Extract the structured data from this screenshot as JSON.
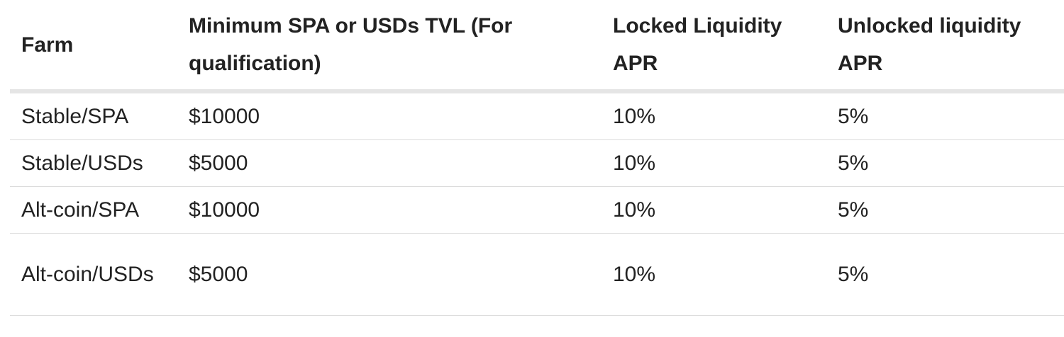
{
  "table": {
    "header": [
      "Farm",
      "Minimum SPA or USDs TVL (For qualification)",
      "Locked Liquidity APR",
      "Unlocked liquidity APR"
    ],
    "rows": [
      [
        "Stable/SPA",
        "$10000",
        "10%",
        "5%"
      ],
      [
        "Stable/USDs",
        "$5000",
        "10%",
        "5%"
      ],
      [
        "Alt-coin/SPA",
        "$10000",
        "10%",
        "5%"
      ],
      [
        "Alt-coin/USDs",
        "$5000",
        "10%",
        "5%"
      ]
    ]
  }
}
